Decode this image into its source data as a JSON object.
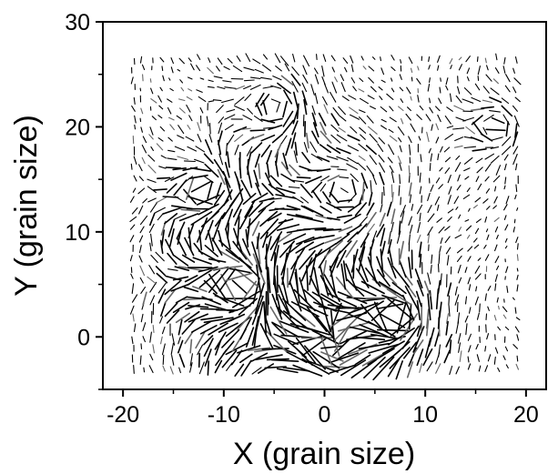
{
  "chart_data": {
    "type": "vector-field",
    "title": "",
    "xlabel": "X (grain size)",
    "ylabel": "Y (grain size)",
    "xlim": [
      -22,
      22
    ],
    "ylim": [
      -5,
      30
    ],
    "xticks": [
      -20,
      -10,
      0,
      10,
      20
    ],
    "yticks": [
      0,
      10,
      20,
      30
    ],
    "grid": false,
    "series": [
      {
        "mark": "line-segment",
        "color": "#000000",
        "region": {
          "x": [
            -19,
            19.5
          ],
          "y": [
            -3,
            27
          ]
        },
        "spacing": 0.95,
        "typical_length": 0.5,
        "max_length": 3.0,
        "disturbances": [
          {
            "center": [
              -8,
              5
            ],
            "radius": 5.5,
            "amplitude": 2.2
          },
          {
            "center": [
              1,
              -1
            ],
            "radius": 4.5,
            "amplitude": 2.4
          },
          {
            "center": [
              7,
              2
            ],
            "radius": 4.0,
            "amplitude": 1.6
          },
          {
            "center": [
              -12,
              14
            ],
            "radius": 3.5,
            "amplitude": 1.0
          },
          {
            "center": [
              2,
              14
            ],
            "radius": 5.5,
            "amplitude": 0.8
          },
          {
            "center": [
              -5,
              22
            ],
            "radius": 4.0,
            "amplitude": 0.7
          },
          {
            "center": [
              17,
              20
            ],
            "radius": 3.0,
            "amplitude": 0.9
          }
        ]
      }
    ]
  }
}
